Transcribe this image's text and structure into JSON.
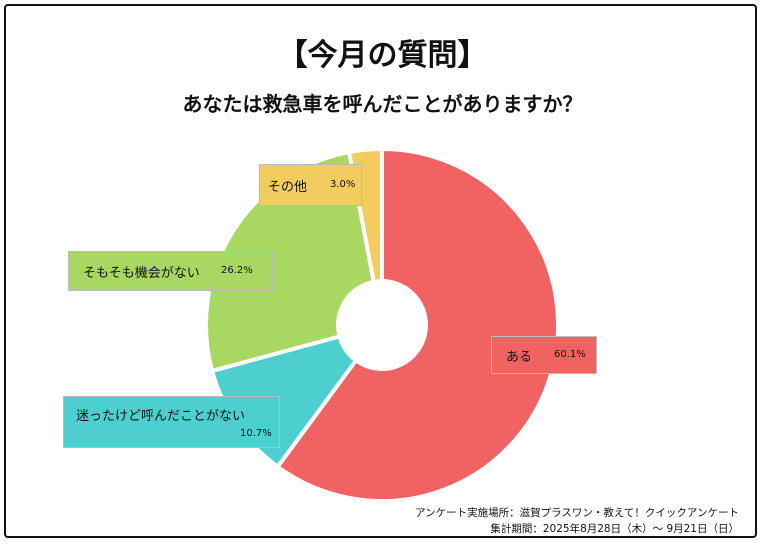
{
  "title": "【今月の質問】",
  "subtitle": "あなたは救急車を呼んだことがありますか？",
  "chart_data": {
    "type": "pie",
    "style": "donut",
    "slices": [
      {
        "label": "ある",
        "value": 60.1,
        "display": "60.1%",
        "color": "#f16262"
      },
      {
        "label": "迷ったけど呼んだことがない",
        "value": 10.7,
        "display": "10.7%",
        "color": "#4ecfcf"
      },
      {
        "label": "そもそも機会がない",
        "value": 26.2,
        "display": "26.2%",
        "color": "#a8d862"
      },
      {
        "label": "その他",
        "value": 3.0,
        "display": "3.0%",
        "color": "#f3cc5f"
      }
    ]
  },
  "footer": {
    "line1": "アンケート実施場所：滋賀プラスワン・教えて！クイックアンケート",
    "line2": "集計期間：2025年8月28日（木）〜 9月21日（日）"
  }
}
